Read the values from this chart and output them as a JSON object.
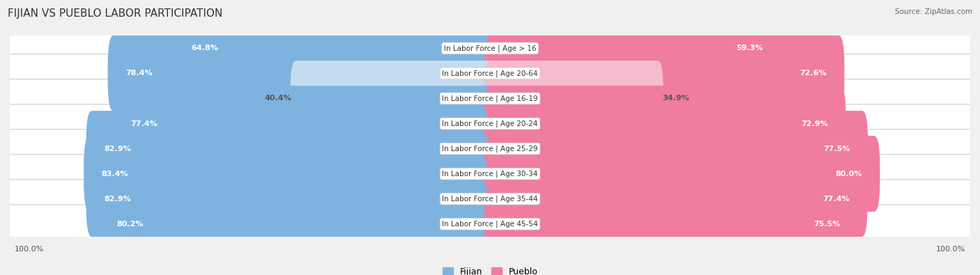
{
  "title": "FIJIAN VS PUEBLO LABOR PARTICIPATION",
  "source": "Source: ZipAtlas.com",
  "categories": [
    "In Labor Force | Age > 16",
    "In Labor Force | Age 20-64",
    "In Labor Force | Age 16-19",
    "In Labor Force | Age 20-24",
    "In Labor Force | Age 25-29",
    "In Labor Force | Age 30-34",
    "In Labor Force | Age 35-44",
    "In Labor Force | Age 45-54"
  ],
  "fijian_values": [
    64.8,
    78.4,
    40.4,
    77.4,
    82.9,
    83.4,
    82.9,
    80.2
  ],
  "pueblo_values": [
    59.3,
    72.6,
    34.9,
    72.9,
    77.5,
    80.0,
    77.4,
    75.5
  ],
  "fijian_color": "#7EB3E0",
  "fijian_color_light": "#C5DCF0",
  "pueblo_color": "#F07CA0",
  "pueblo_color_light": "#F5BBCE",
  "bar_height": 0.62,
  "label_fontsize": 8.0,
  "title_fontsize": 11,
  "axis_label_fontsize": 8,
  "legend_fontsize": 9,
  "row_bg_color": "#ffffff",
  "row_border_color": "#d5d5d5",
  "fig_bg_color": "#f0f0f0"
}
